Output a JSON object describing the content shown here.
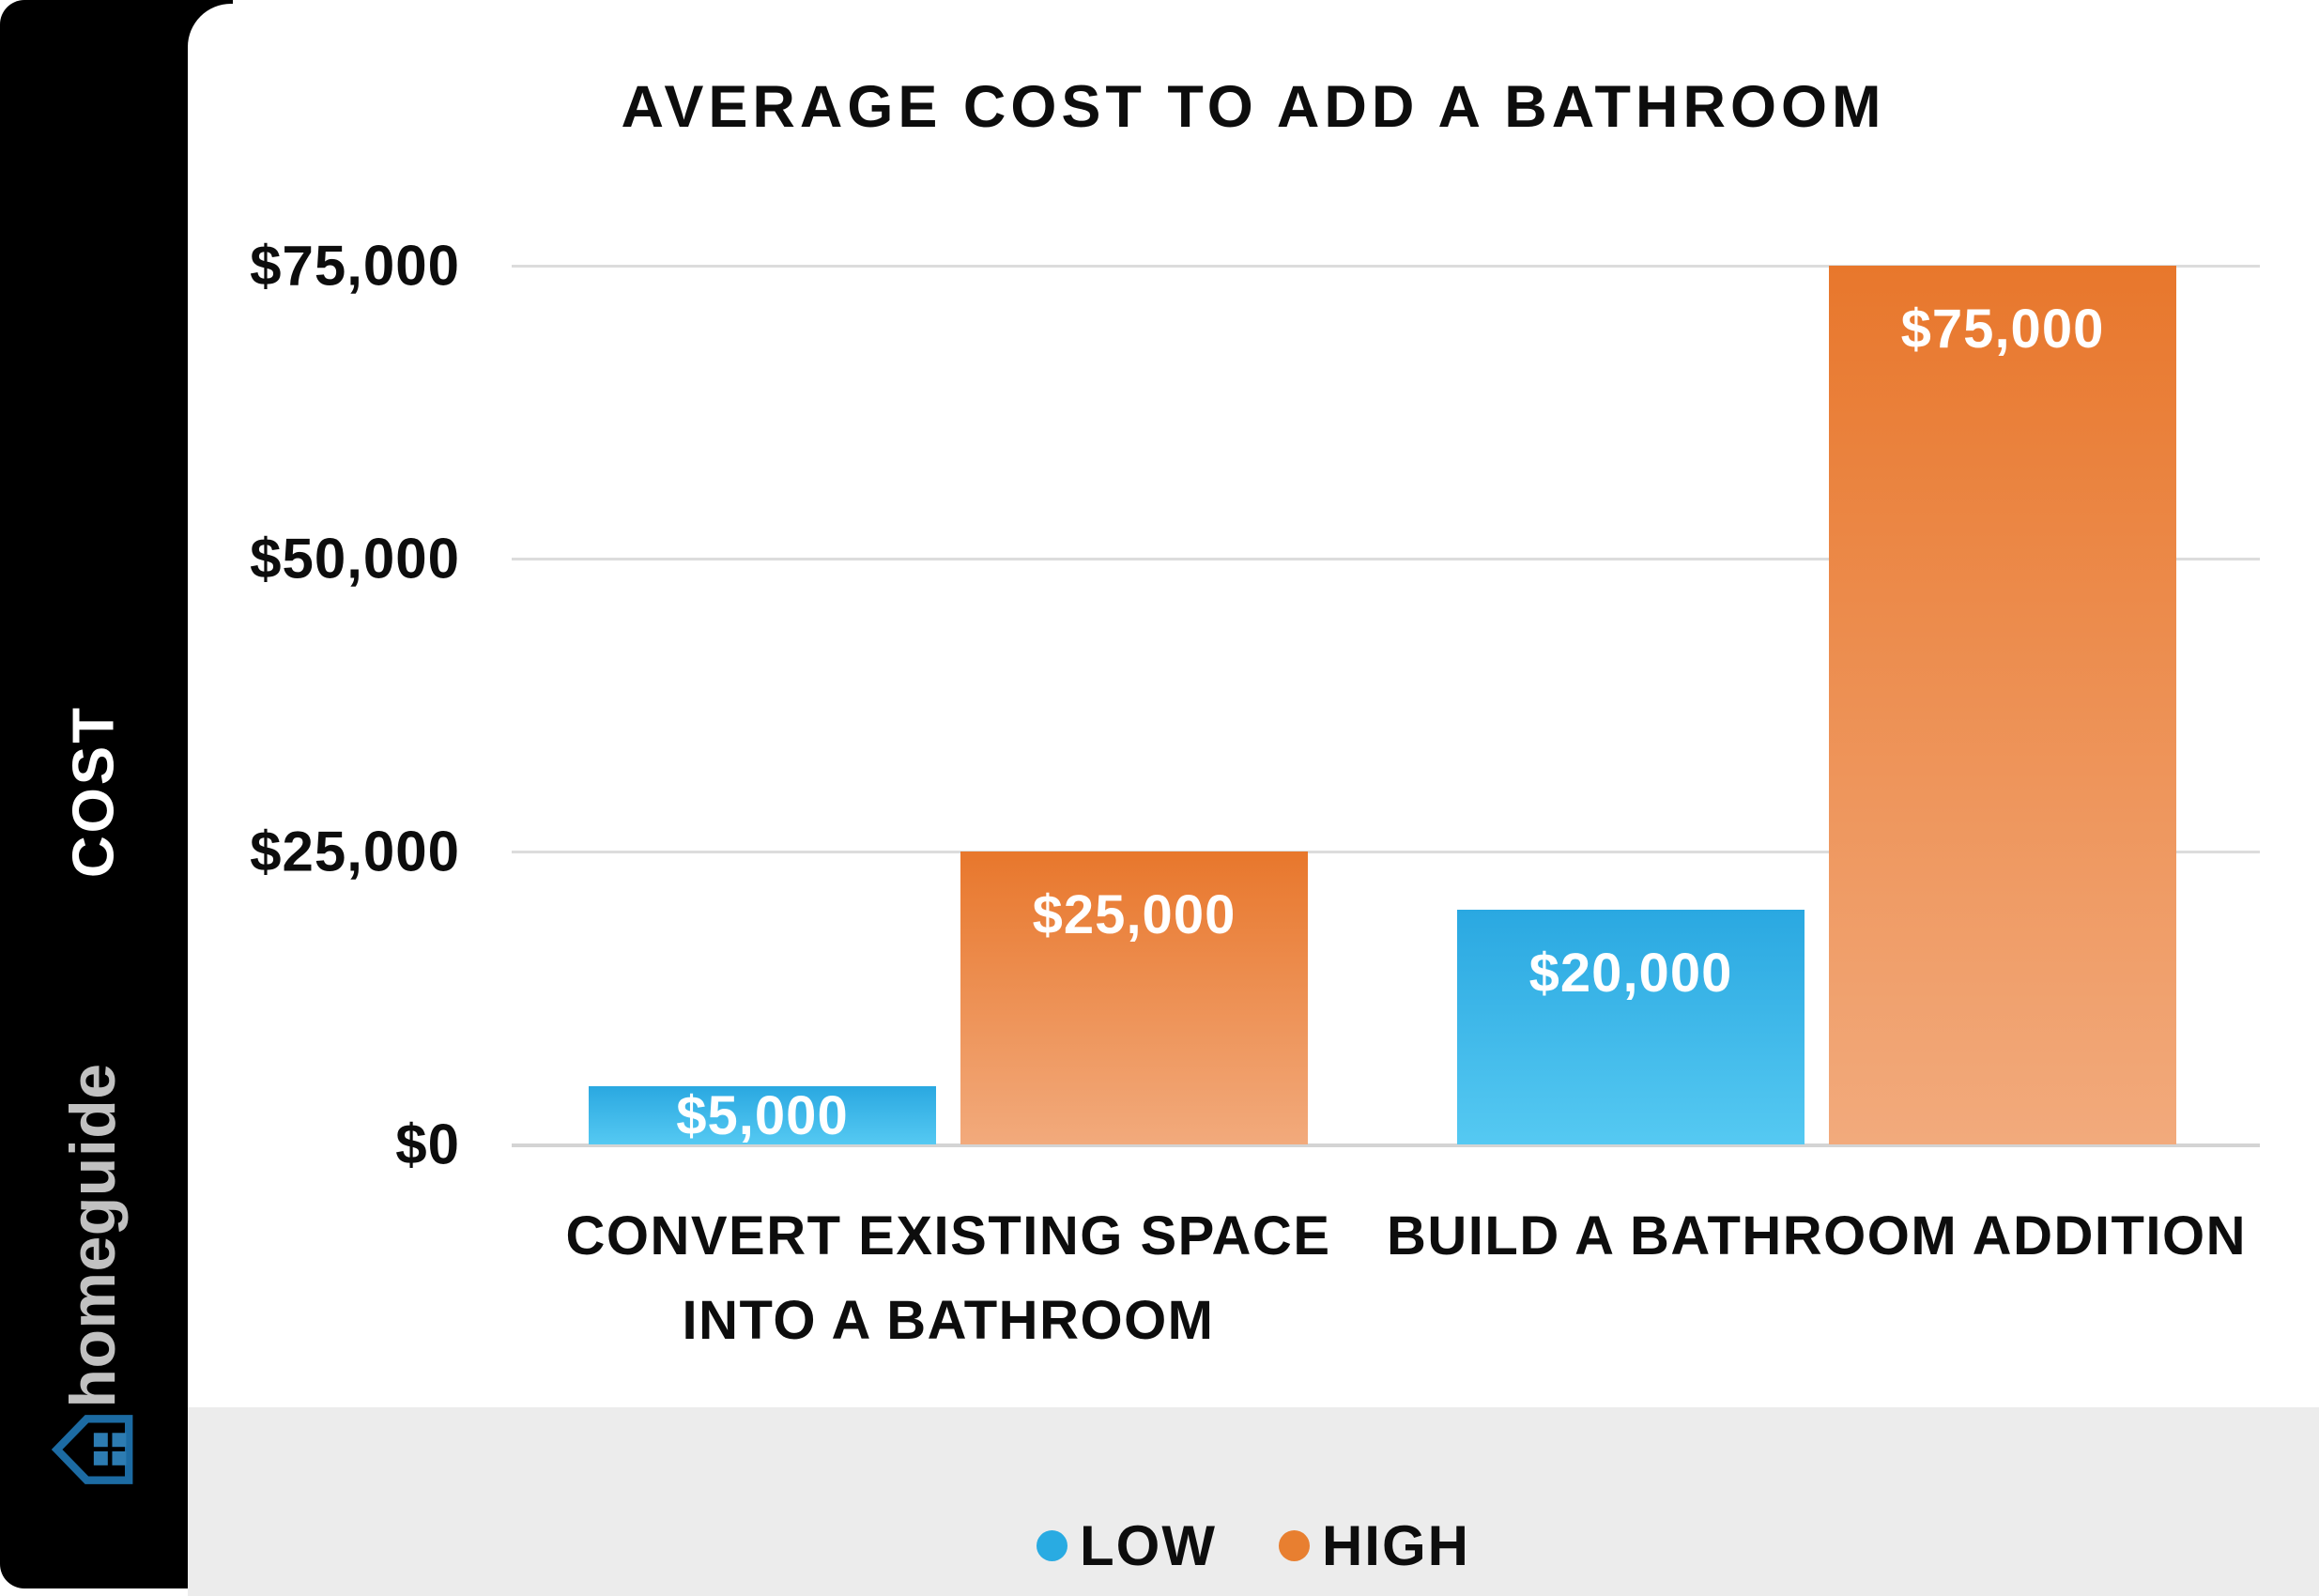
{
  "page": {
    "brand": "homeguide"
  },
  "sidebar": {
    "axis_label": "COST"
  },
  "chart_data": {
    "type": "bar",
    "title": "AVERAGE COST TO ADD A BATHROOM",
    "categories": [
      "CONVERT EXISTING SPACE INTO A BATHROOM",
      "BUILD A BATHROOM ADDITION"
    ],
    "series": [
      {
        "name": "LOW",
        "values": [
          5000,
          20000
        ],
        "value_labels": [
          "$5,000",
          "$20,000"
        ],
        "gradient_top": "#2aa8e1",
        "gradient_bottom": "#55c9f2",
        "legend_color": "#29abe2"
      },
      {
        "name": "HIGH",
        "values": [
          25000,
          75000
        ],
        "value_labels": [
          "$25,000",
          "$75,000"
        ],
        "gradient_top": "#e8772c",
        "gradient_bottom": "#f2aa7c",
        "legend_color": "#e87f30"
      }
    ],
    "ylabel": "COST",
    "ylim": [
      0,
      75000
    ],
    "yticks": [
      {
        "value": 0,
        "label": "$0"
      },
      {
        "value": 25000,
        "label": "$25,000"
      },
      {
        "value": 50000,
        "label": "$50,000"
      },
      {
        "value": 75000,
        "label": "$75,000"
      }
    ],
    "grid": true,
    "legend_position": "bottom",
    "legend": [
      "LOW",
      "HIGH"
    ],
    "icon_colors": {
      "house_stroke": "#1c6ba3",
      "house_windows": "#2d7cb2"
    }
  }
}
